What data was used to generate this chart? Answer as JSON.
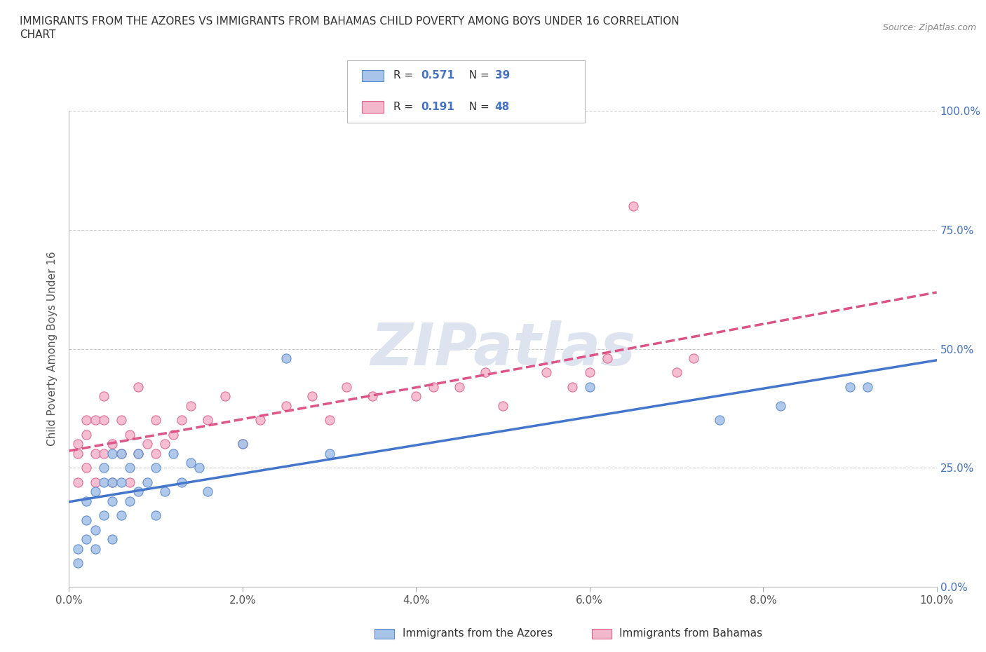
{
  "title_line1": "IMMIGRANTS FROM THE AZORES VS IMMIGRANTS FROM BAHAMAS CHILD POVERTY AMONG BOYS UNDER 16 CORRELATION",
  "title_line2": "CHART",
  "source_text": "Source: ZipAtlas.com",
  "ylabel": "Child Poverty Among Boys Under 16",
  "xlim": [
    0.0,
    0.1
  ],
  "ylim": [
    0.0,
    1.0
  ],
  "xticks": [
    0.0,
    0.02,
    0.04,
    0.06,
    0.08,
    0.1
  ],
  "xticklabels": [
    "0.0%",
    "2.0%",
    "4.0%",
    "6.0%",
    "8.0%",
    "10.0%"
  ],
  "yticks": [
    0.0,
    0.25,
    0.5,
    0.75,
    1.0
  ],
  "yticklabels_right": [
    "0.0%",
    "25.0%",
    "50.0%",
    "75.0%",
    "100.0%"
  ],
  "azores_color": "#a8c4e8",
  "bahamas_color": "#f4b8cc",
  "azores_edge_color": "#5588cc",
  "bahamas_edge_color": "#e06090",
  "azores_line_color": "#4477cc",
  "bahamas_line_color": "#dd5588",
  "background_color": "#ffffff",
  "watermark_text": "ZIPatlas",
  "watermark_color": "#dde4f0",
  "azores_x": [
    0.001,
    0.001,
    0.002,
    0.002,
    0.002,
    0.003,
    0.003,
    0.003,
    0.004,
    0.004,
    0.004,
    0.005,
    0.005,
    0.005,
    0.005,
    0.006,
    0.006,
    0.006,
    0.007,
    0.007,
    0.008,
    0.008,
    0.009,
    0.01,
    0.01,
    0.011,
    0.012,
    0.013,
    0.014,
    0.015,
    0.016,
    0.02,
    0.025,
    0.03,
    0.06,
    0.075,
    0.082,
    0.09,
    0.092
  ],
  "azores_y": [
    0.05,
    0.08,
    0.1,
    0.14,
    0.18,
    0.08,
    0.12,
    0.2,
    0.15,
    0.22,
    0.25,
    0.1,
    0.18,
    0.22,
    0.28,
    0.15,
    0.22,
    0.28,
    0.18,
    0.25,
    0.2,
    0.28,
    0.22,
    0.15,
    0.25,
    0.2,
    0.28,
    0.22,
    0.26,
    0.25,
    0.2,
    0.3,
    0.48,
    0.28,
    0.42,
    0.35,
    0.38,
    0.42,
    0.42
  ],
  "bahamas_x": [
    0.001,
    0.001,
    0.001,
    0.002,
    0.002,
    0.002,
    0.003,
    0.003,
    0.003,
    0.004,
    0.004,
    0.004,
    0.005,
    0.005,
    0.006,
    0.006,
    0.007,
    0.007,
    0.008,
    0.008,
    0.009,
    0.01,
    0.01,
    0.011,
    0.012,
    0.013,
    0.014,
    0.016,
    0.018,
    0.02,
    0.022,
    0.025,
    0.028,
    0.03,
    0.032,
    0.035,
    0.04,
    0.042,
    0.045,
    0.048,
    0.05,
    0.055,
    0.058,
    0.06,
    0.062,
    0.065,
    0.07,
    0.072
  ],
  "bahamas_y": [
    0.28,
    0.22,
    0.3,
    0.25,
    0.32,
    0.35,
    0.22,
    0.28,
    0.35,
    0.28,
    0.35,
    0.4,
    0.22,
    0.3,
    0.28,
    0.35,
    0.22,
    0.32,
    0.28,
    0.42,
    0.3,
    0.28,
    0.35,
    0.3,
    0.32,
    0.35,
    0.38,
    0.35,
    0.4,
    0.3,
    0.35,
    0.38,
    0.4,
    0.35,
    0.42,
    0.4,
    0.4,
    0.42,
    0.42,
    0.45,
    0.38,
    0.45,
    0.42,
    0.45,
    0.48,
    0.8,
    0.45,
    0.48
  ]
}
